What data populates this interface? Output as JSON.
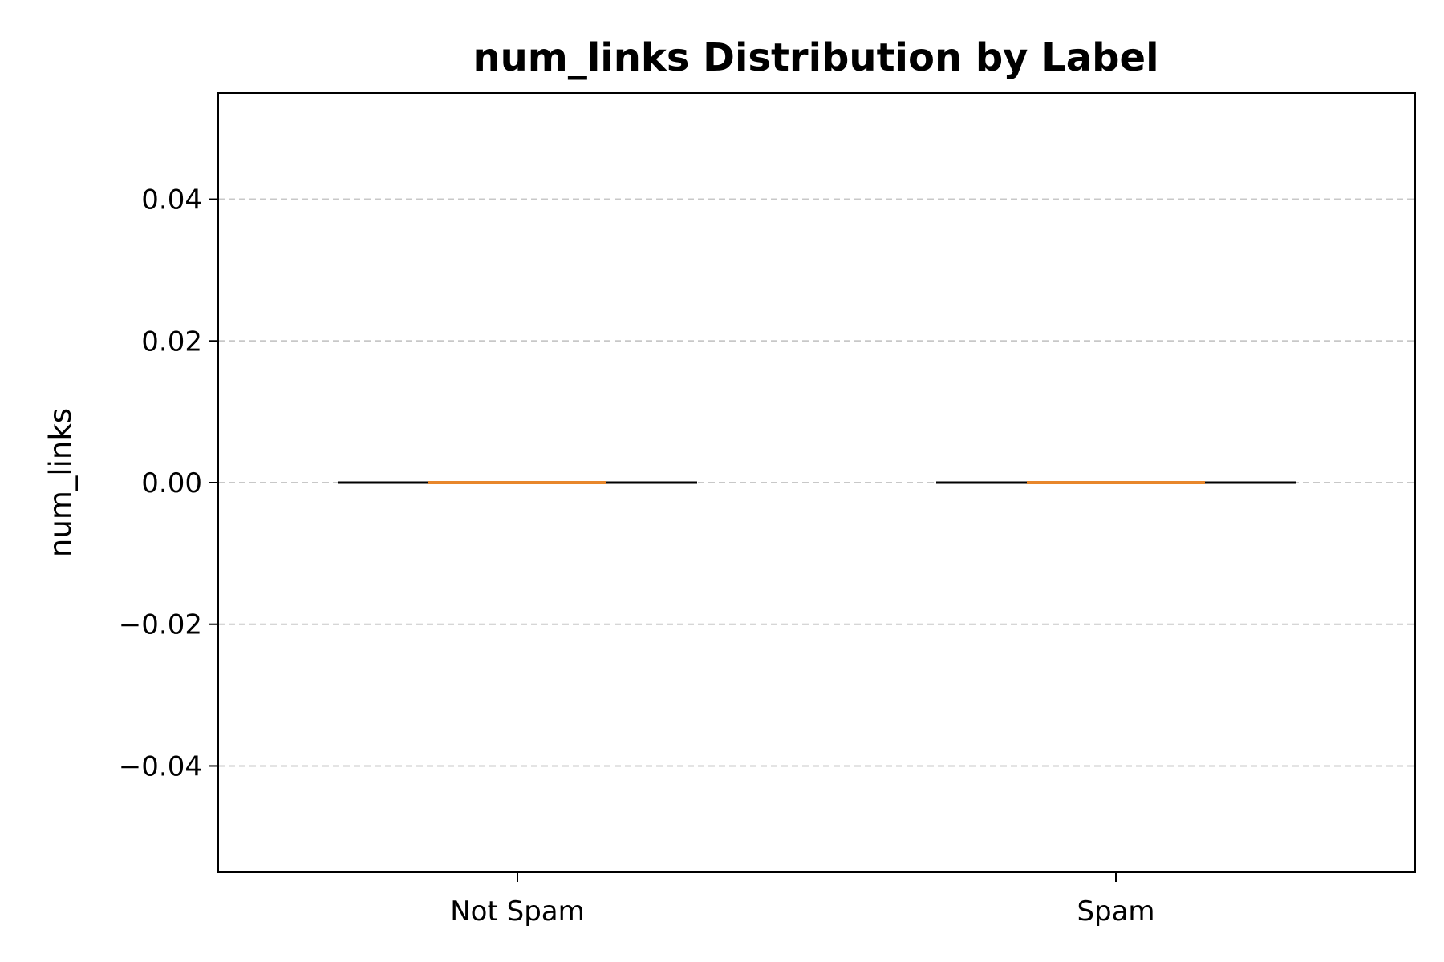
{
  "chart_data": {
    "type": "box",
    "title": "num_links Distribution by Label",
    "xlabel": "",
    "ylabel": "num_links",
    "categories": [
      "Not Spam",
      "Spam"
    ],
    "boxes": [
      {
        "category": "Not Spam",
        "min": 0.0,
        "q1": 0.0,
        "median": 0.0,
        "q3": 0.0,
        "max": 0.0
      },
      {
        "category": "Spam",
        "min": 0.0,
        "q1": 0.0,
        "median": 0.0,
        "q3": 0.0,
        "max": 0.0
      }
    ],
    "ylim": [
      -0.055,
      0.055
    ],
    "yticks": [
      -0.04,
      -0.02,
      0.0,
      0.02,
      0.04
    ],
    "ytick_labels": [
      "−0.04",
      "−0.02",
      "0.00",
      "0.02",
      "0.04"
    ],
    "grid": "y-dashed",
    "colors": {
      "median": "#e8872b",
      "box": "#000000",
      "grid": "#c8c8c8"
    }
  }
}
